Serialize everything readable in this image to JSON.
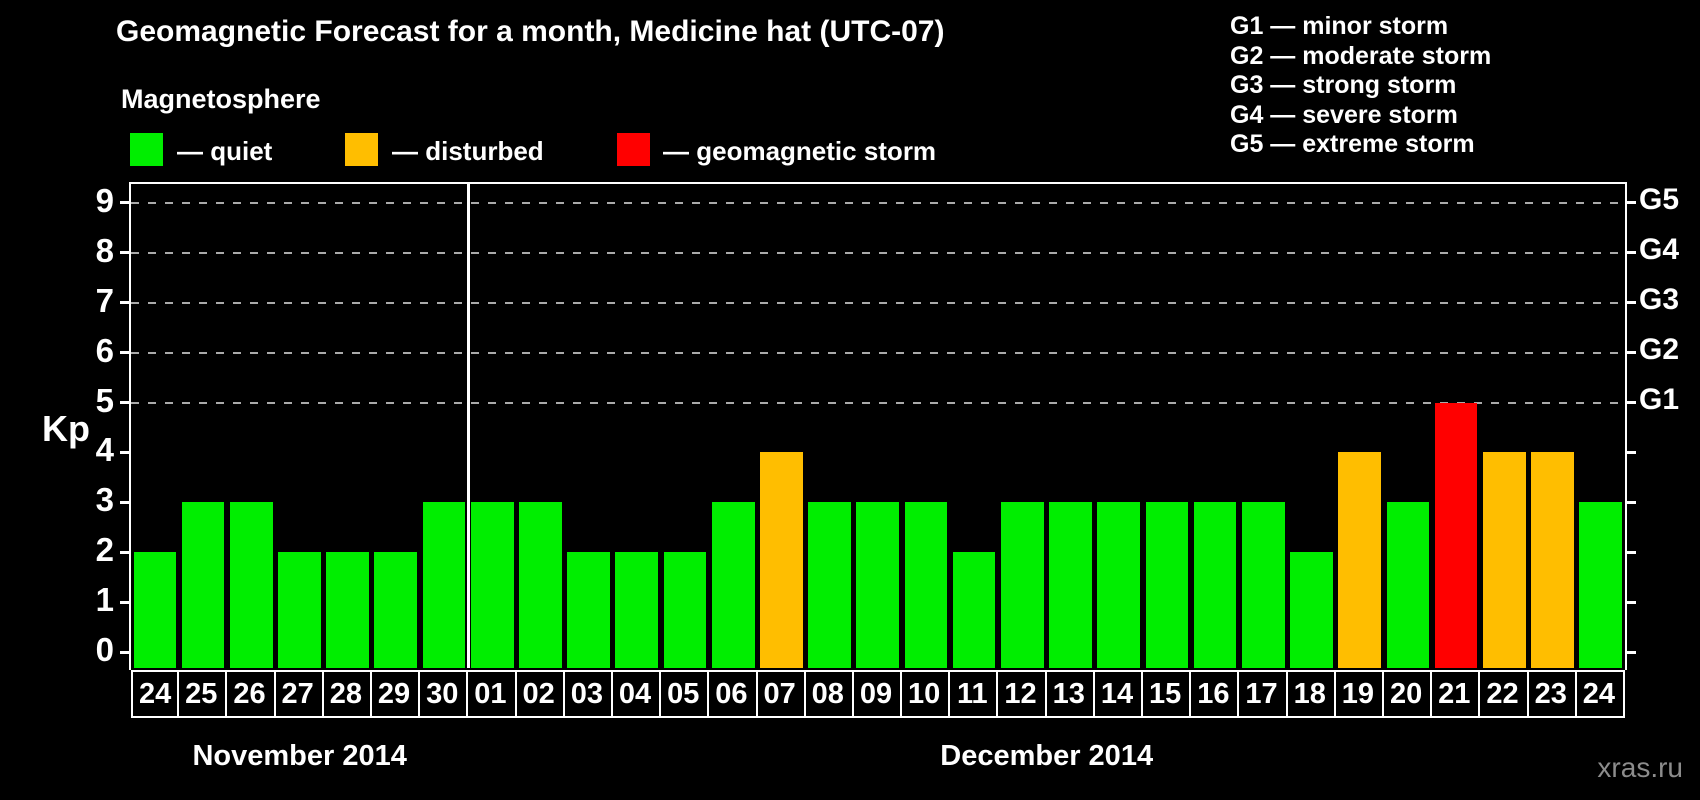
{
  "header": {
    "title": "Geomagnetic Forecast for a month, Medicine hat (UTC-07)",
    "subtitle": "Magnetosphere"
  },
  "legend": {
    "items": [
      {
        "name": "quiet",
        "color": "#00ee00",
        "label": "— quiet"
      },
      {
        "name": "disturbed",
        "color": "#ffbe00",
        "label": "— disturbed"
      },
      {
        "name": "storm",
        "color": "#ff0000",
        "label": "— geomagnetic storm"
      }
    ]
  },
  "g_scale_legend": {
    "lines": [
      "G1 — minor storm",
      "G2 — moderate storm",
      "G3 — strong storm",
      "G4 — severe storm",
      "G5 — extreme storm"
    ]
  },
  "watermark": "xras.ru",
  "chart_data": {
    "type": "bar",
    "title": "Geomagnetic Forecast for a month, Medicine hat (UTC-07)",
    "ylabel": "Kp",
    "ylim": [
      0,
      9
    ],
    "y_ticks": [
      0,
      1,
      2,
      3,
      4,
      5,
      6,
      7,
      8,
      9
    ],
    "gridlines_at": [
      5,
      6,
      7,
      8,
      9
    ],
    "grid": true,
    "legend_position": "top",
    "right_axis": [
      {
        "kp": 5,
        "label": "G1"
      },
      {
        "kp": 6,
        "label": "G2"
      },
      {
        "kp": 7,
        "label": "G3"
      },
      {
        "kp": 8,
        "label": "G4"
      },
      {
        "kp": 9,
        "label": "G5"
      }
    ],
    "colors": {
      "quiet": "#00ee00",
      "disturbed": "#ffbe00",
      "storm": "#ff0000"
    },
    "months": [
      {
        "label": "November 2014",
        "start_index": 0,
        "days": 7
      },
      {
        "label": "December 2014",
        "start_index": 7,
        "days": 24
      }
    ],
    "bars": [
      {
        "day": "24",
        "kp": 2,
        "status": "quiet"
      },
      {
        "day": "25",
        "kp": 3,
        "status": "quiet"
      },
      {
        "day": "26",
        "kp": 3,
        "status": "quiet"
      },
      {
        "day": "27",
        "kp": 2,
        "status": "quiet"
      },
      {
        "day": "28",
        "kp": 2,
        "status": "quiet"
      },
      {
        "day": "29",
        "kp": 2,
        "status": "quiet"
      },
      {
        "day": "30",
        "kp": 3,
        "status": "quiet"
      },
      {
        "day": "01",
        "kp": 3,
        "status": "quiet"
      },
      {
        "day": "02",
        "kp": 3,
        "status": "quiet"
      },
      {
        "day": "03",
        "kp": 2,
        "status": "quiet"
      },
      {
        "day": "04",
        "kp": 2,
        "status": "quiet"
      },
      {
        "day": "05",
        "kp": 2,
        "status": "quiet"
      },
      {
        "day": "06",
        "kp": 3,
        "status": "quiet"
      },
      {
        "day": "07",
        "kp": 4,
        "status": "disturbed"
      },
      {
        "day": "08",
        "kp": 3,
        "status": "quiet"
      },
      {
        "day": "09",
        "kp": 3,
        "status": "quiet"
      },
      {
        "day": "10",
        "kp": 3,
        "status": "quiet"
      },
      {
        "day": "11",
        "kp": 2,
        "status": "quiet"
      },
      {
        "day": "12",
        "kp": 3,
        "status": "quiet"
      },
      {
        "day": "13",
        "kp": 3,
        "status": "quiet"
      },
      {
        "day": "14",
        "kp": 3,
        "status": "quiet"
      },
      {
        "day": "15",
        "kp": 3,
        "status": "quiet"
      },
      {
        "day": "16",
        "kp": 3,
        "status": "quiet"
      },
      {
        "day": "17",
        "kp": 3,
        "status": "quiet"
      },
      {
        "day": "18",
        "kp": 2,
        "status": "quiet"
      },
      {
        "day": "19",
        "kp": 4,
        "status": "disturbed"
      },
      {
        "day": "20",
        "kp": 3,
        "status": "quiet"
      },
      {
        "day": "21",
        "kp": 5,
        "status": "storm"
      },
      {
        "day": "22",
        "kp": 4,
        "status": "disturbed"
      },
      {
        "day": "23",
        "kp": 4,
        "status": "disturbed"
      },
      {
        "day": "24",
        "kp": 3,
        "status": "quiet"
      }
    ]
  }
}
